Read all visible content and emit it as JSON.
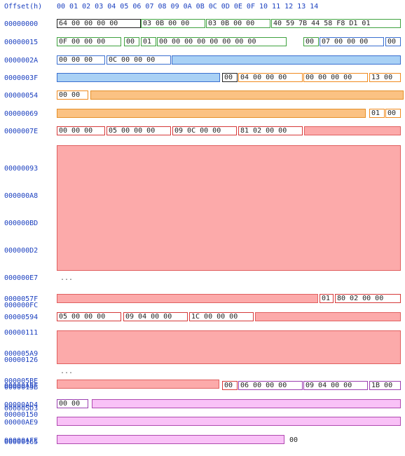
{
  "header": {
    "offset_label": "Offset(h)",
    "columns": "00 01 02 03 04 05 06 07 08 09 0A 0B 0C 0D 0E 0F 10 11 12 13 14"
  },
  "rows": [
    {
      "offset": "00000000"
    },
    {
      "offset": "00000015"
    },
    {
      "offset": "0000002A"
    },
    {
      "offset": "0000003F"
    },
    {
      "offset": "00000054"
    },
    {
      "offset": "00000069"
    },
    {
      "offset": "0000007E"
    }
  ],
  "block1_offsets": [
    "00000093",
    "000000A8",
    "000000BD",
    "000000D2",
    "000000E7",
    "000000FC",
    "00000111",
    "00000126",
    "0000013B",
    "00000150",
    "00000165"
  ],
  "ellipsis": "...",
  "row_57F": {
    "offset": "0000057F"
  },
  "row_594": {
    "offset": "00000594"
  },
  "block2_offsets": [
    "000005A9",
    "000005BE",
    "000005D3"
  ],
  "row_ABF": {
    "offset": "00000ABF"
  },
  "row_AD4": {
    "offset": "00000AD4"
  },
  "row_AE9": {
    "offset": "00000AE9"
  },
  "row_AFE": {
    "offset": "00000AFE"
  },
  "bytes": {
    "r0": [
      "64 00 00 00 00",
      "03 0B 00 00",
      "03 0B 00 00",
      "40 59 7B 44 58 F8 D1 01"
    ],
    "r1": [
      "0F 00 00 00",
      "00",
      "01",
      "00 00 00 00 00 00 00 00",
      "00",
      "07 00 00 00",
      "00"
    ],
    "r2": [
      "00 00 00",
      "0C 00 00 00"
    ],
    "r3": [
      "00",
      "04 00 00 00",
      "00 00 00 00",
      "13 00"
    ],
    "r4": [
      "00 00"
    ],
    "r5": [
      "01",
      "00"
    ],
    "r6": [
      "00 00 00",
      "05 00 00 00",
      "09 0C 00 00",
      "81 02 00 00"
    ],
    "r57f": [
      "01",
      "80 02 00 00"
    ],
    "r594": [
      "05 00 00 00",
      "09 04 00 00",
      "1C 00 00 00"
    ],
    "rabf": [
      "00",
      "06 00 00 00",
      "09 04 00 00",
      "1B 00"
    ],
    "rad4": [
      "00 00"
    ],
    "rafe": "00"
  }
}
